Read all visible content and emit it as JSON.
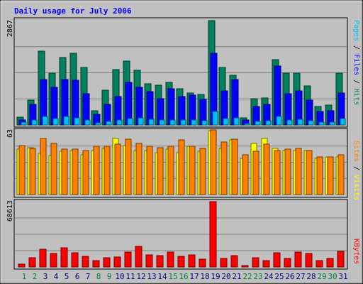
{
  "chart_data": {
    "type": "bar",
    "title": "Daily usage for July 2006",
    "categories": [
      "1",
      "2",
      "3",
      "4",
      "5",
      "6",
      "7",
      "8",
      "9",
      "10",
      "11",
      "12",
      "13",
      "14",
      "15",
      "16",
      "17",
      "18",
      "19",
      "20",
      "21",
      "22",
      "23",
      "24",
      "25",
      "26",
      "27",
      "28",
      "29",
      "30",
      "31"
    ],
    "weekend_days": [
      "1",
      "2",
      "8",
      "9",
      "15",
      "16",
      "22",
      "23",
      "29",
      "30"
    ],
    "panels": [
      {
        "id": "hits",
        "max_label": "2867",
        "ylim": [
          0,
          2867
        ],
        "series": [
          {
            "name": "Hits",
            "color": "#00805c",
            "values": [
              214,
              686,
              2028,
              1428,
              1857,
              1971,
              1571,
              385,
              964,
              1514,
              1757,
              1499,
              1128,
              1085,
              1171,
              1000,
              871,
              842,
              2867,
              1571,
              1357,
              200,
              728,
              742,
              1785,
              1428,
              1428,
              1071,
              500,
              542,
              1428
            ]
          },
          {
            "name": "Files",
            "color": "#0000ff",
            "values": [
              143,
              571,
              1257,
              1028,
              1257,
              1228,
              857,
              286,
              557,
              785,
              1171,
              1028,
              914,
              714,
              1000,
              785,
              814,
              700,
              1971,
              942,
              1257,
              143,
              500,
              571,
              1628,
              857,
              928,
              685,
              371,
              386,
              885
            ]
          },
          {
            "name": "Pages",
            "color": "#00c0ff",
            "values": [
              86,
              143,
              243,
              171,
              228,
              200,
              143,
              57,
              100,
              128,
              171,
              200,
              157,
              143,
              143,
              128,
              128,
              114,
              371,
              171,
              200,
              43,
              100,
              114,
              243,
              143,
              157,
              114,
              71,
              71,
              171
            ]
          }
        ]
      },
      {
        "id": "visits",
        "max_label": "63",
        "ylim": [
          0,
          63
        ],
        "series": [
          {
            "name": "Visits",
            "color": "#ffff00",
            "values": [
              44,
              46,
              40,
              38,
              42,
              43,
              39,
              43,
              45,
              55,
              48,
              43,
              43,
              41,
              44,
              41,
              47,
              42,
              62,
              45,
              53,
              35,
              50,
              55,
              45,
              43,
              43,
              43,
              35,
              37,
              37
            ]
          },
          {
            "name": "Sites",
            "color": "#ff8000",
            "values": [
              48,
              45,
              55,
              50,
              44,
              44,
              43,
              47,
              47,
              49,
              54,
              50,
              47,
              46,
              47,
              53,
              47,
              45,
              63,
              51,
              54,
              39,
              42,
              49,
              43,
              44,
              45,
              43,
              37,
              37,
              39
            ]
          }
        ]
      },
      {
        "id": "kbytes",
        "max_label": "68613",
        "ylim": [
          0,
          68613
        ],
        "series": [
          {
            "name": "KBytes",
            "color": "#ff0000",
            "values": [
              3000,
              9500,
              18500,
              14000,
              20000,
              15000,
              11000,
              6500,
              9500,
              10500,
              15500,
              21500,
              12500,
              12000,
              15500,
              11500,
              12500,
              8500,
              68613,
              9000,
              12000,
              1500,
              9500,
              7000,
              15000,
              9000,
              15500,
              14000,
              7000,
              9000,
              16500
            ]
          }
        ]
      }
    ],
    "legend_right": [
      {
        "text": "Pages",
        "color": "#00c0ff"
      },
      {
        "text": " / ",
        "color": "#000000"
      },
      {
        "text": "Files",
        "color": "#0000ff"
      },
      {
        "text": " / ",
        "color": "#000000"
      },
      {
        "text": "Hits",
        "color": "#00805c"
      }
    ],
    "legend_right_mid": [
      {
        "text": "Sites",
        "color": "#ff8000"
      },
      {
        "text": " / ",
        "color": "#000000"
      },
      {
        "text": "Visits",
        "color": "#ffff00"
      }
    ],
    "legend_right_bottom": [
      {
        "text": "KBytes",
        "color": "#ff0000"
      }
    ],
    "colors": {
      "background": "#c0c0c0",
      "title": "#0000ff",
      "weekday_label": "#000080",
      "weekend_label": "#008040",
      "gridline": "#808080"
    }
  }
}
